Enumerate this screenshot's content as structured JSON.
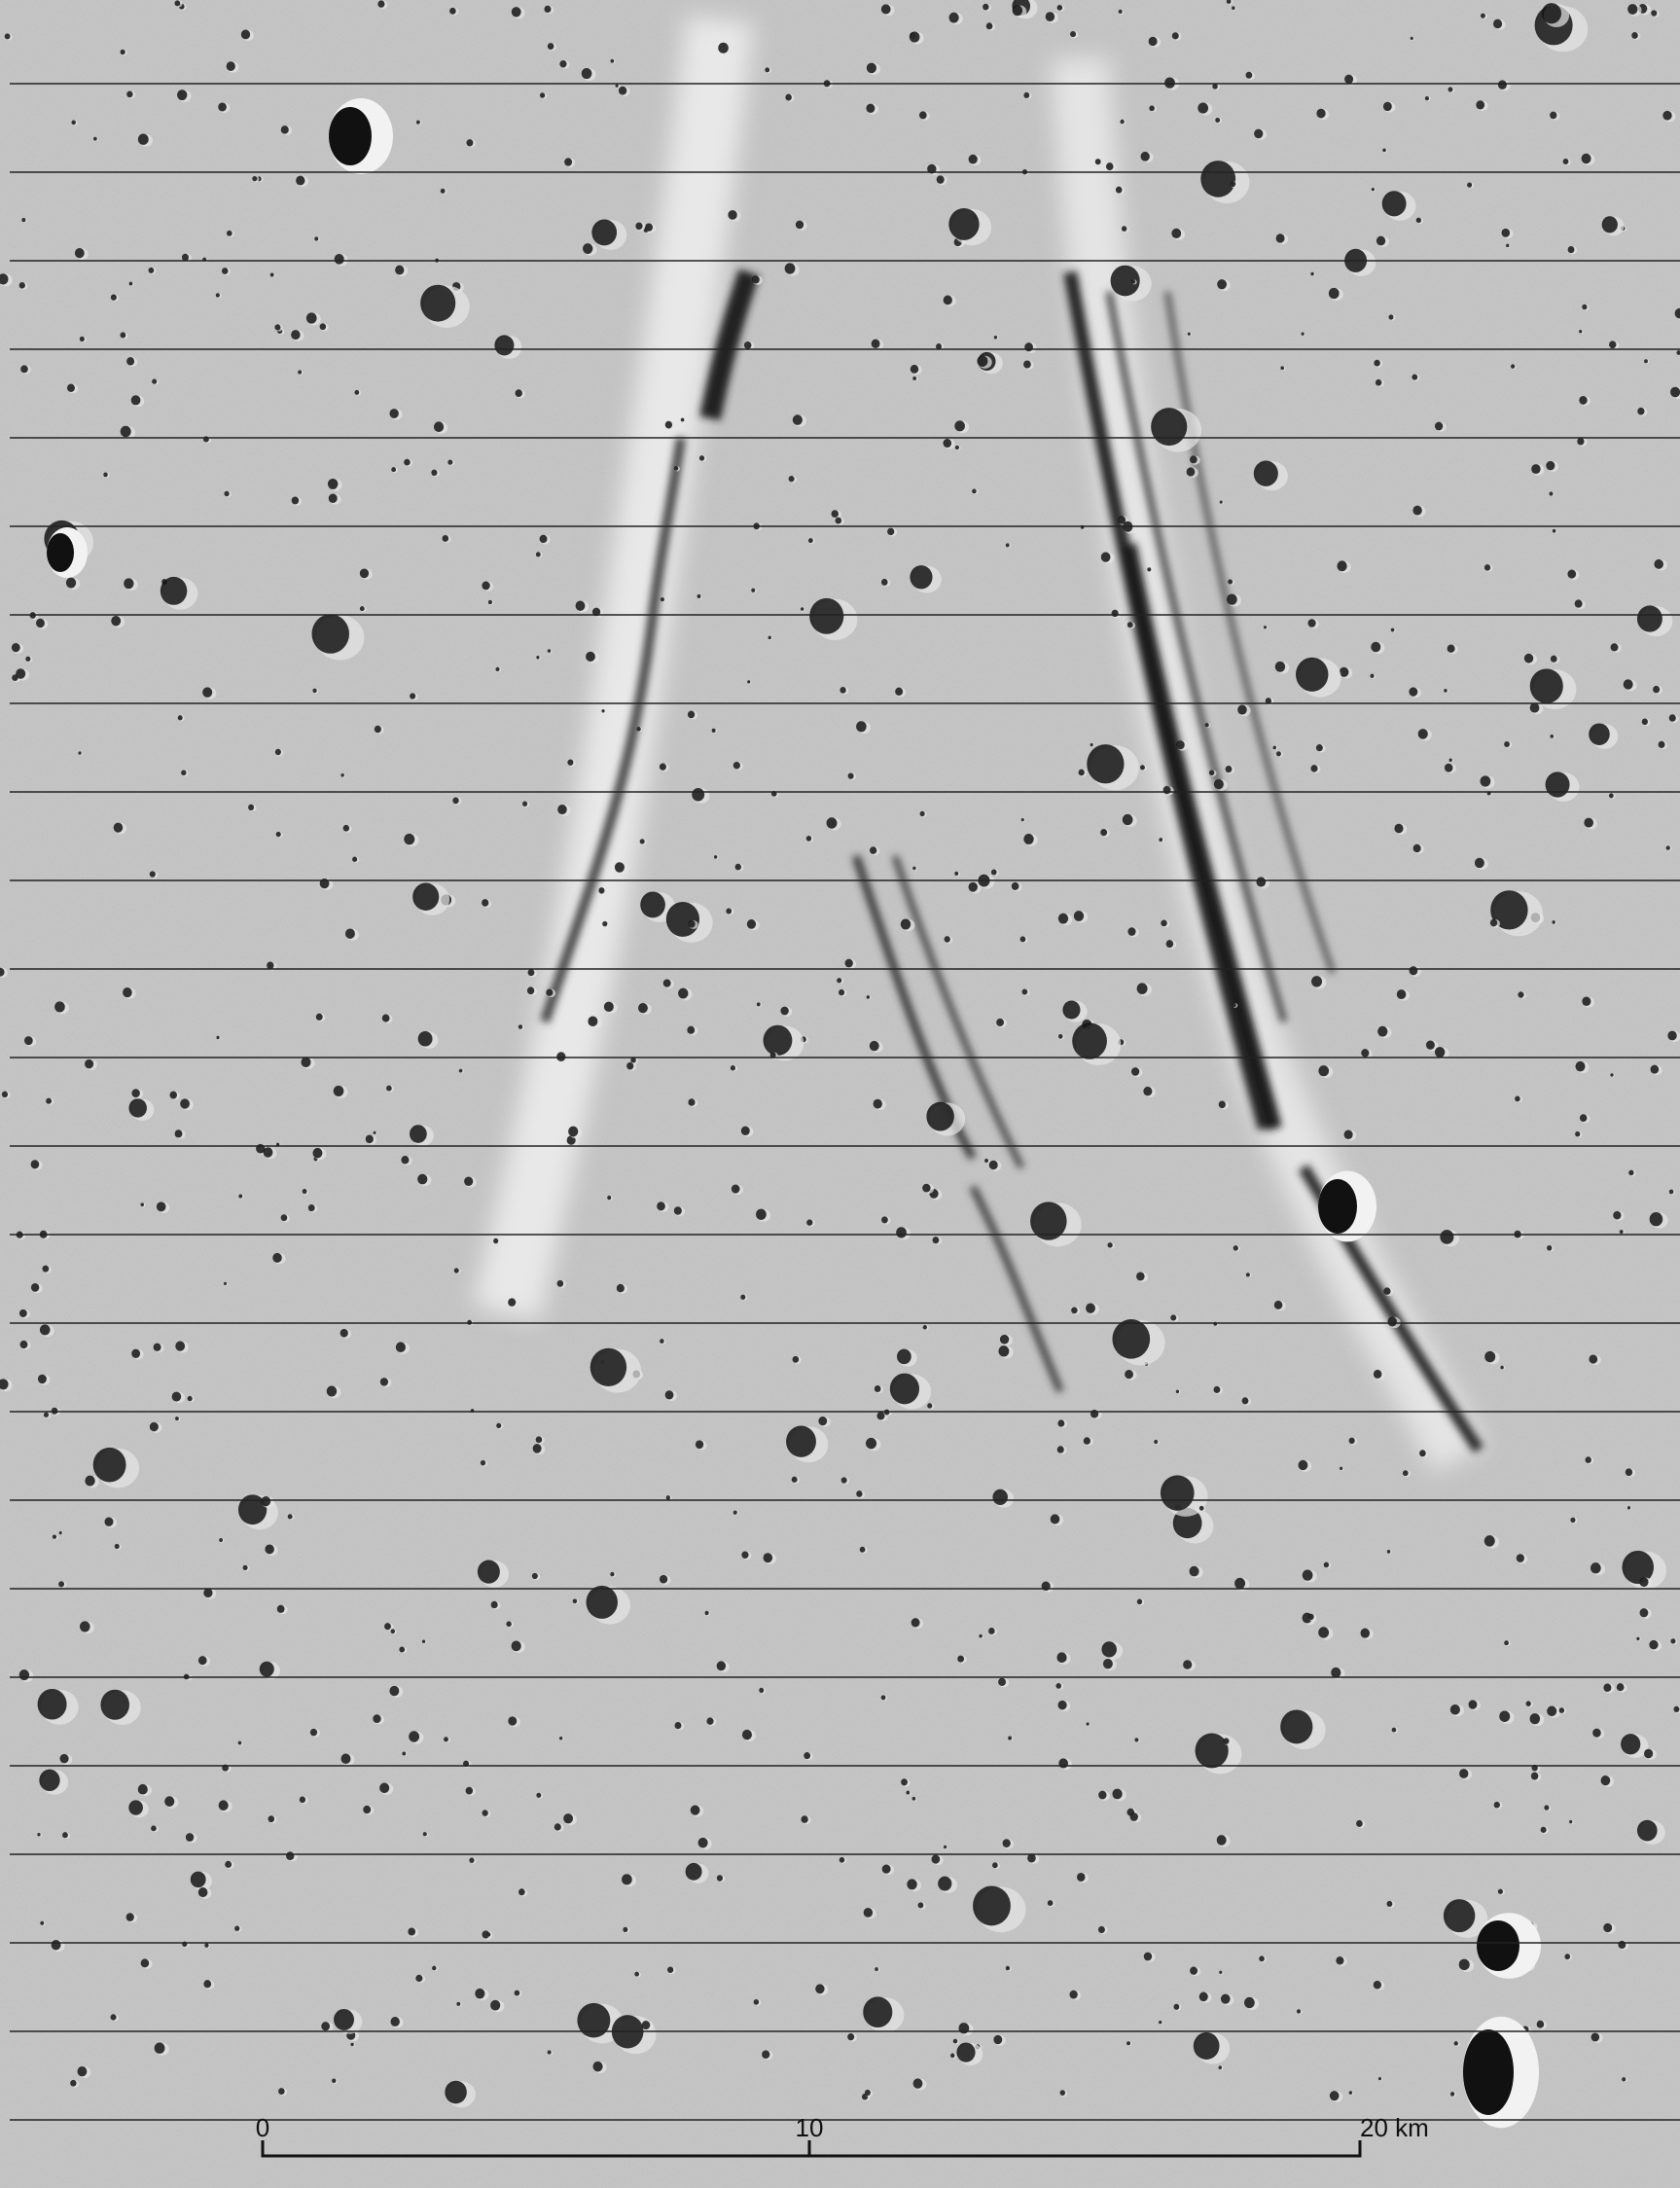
{
  "scale_bar": {
    "labels": [
      "0",
      "10",
      "20 km"
    ]
  }
}
